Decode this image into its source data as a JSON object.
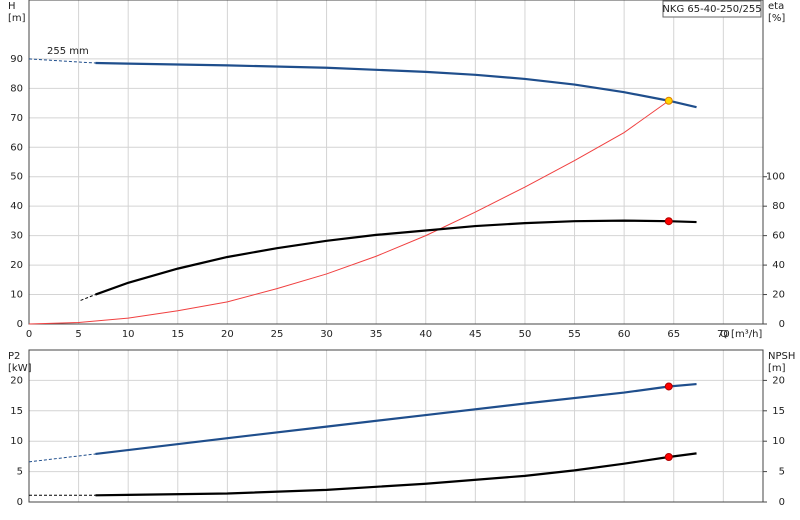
{
  "chart_data": [
    {
      "type": "line",
      "title": "NKG 65-40-250/255",
      "annotation": "255 mm",
      "ylabel": "H",
      "yunit": "[m]",
      "y2label": "eta",
      "y2unit": "[%]",
      "xlabel": "Q [m³/h]",
      "xlim": [
        0,
        74
      ],
      "xticks": [
        0,
        5,
        10,
        15,
        20,
        25,
        30,
        35,
        40,
        45,
        50,
        55,
        60,
        65,
        70
      ],
      "ylim": [
        0,
        110
      ],
      "yticks": [
        0,
        10,
        20,
        30,
        40,
        50,
        60,
        70,
        80,
        90
      ],
      "y2lim": [
        0,
        220
      ],
      "y2ticks": [
        0,
        20,
        40,
        60,
        80,
        100
      ],
      "grid": true,
      "show_xtick_labels": true,
      "series": [
        {
          "color": "#1f4e8c",
          "dash": true,
          "x": [
            0,
            6.7
          ],
          "values": [
            90,
            88.6
          ]
        },
        {
          "color": "#1f4e8c",
          "x": [
            6.7,
            10,
            20,
            30,
            40,
            45,
            50,
            55,
            60,
            64.5,
            67.3
          ],
          "values": [
            88.6,
            88.4,
            87.8,
            87,
            85.6,
            84.6,
            83.2,
            81.3,
            78.7,
            75.8,
            73.6
          ]
        },
        {
          "color": "#f04040",
          "thin": true,
          "x": [
            0,
            5,
            10,
            15,
            20,
            25,
            30,
            35,
            40,
            45,
            50,
            55,
            60,
            64.5
          ],
          "values": [
            0,
            0.5,
            2,
            4.5,
            7.5,
            12,
            17,
            23,
            30,
            38,
            46.5,
            55.5,
            65,
            75.8
          ]
        },
        {
          "color": "#000000",
          "dash": true,
          "axis": "y2",
          "x": [
            5.2,
            6.7
          ],
          "values": [
            16,
            20
          ]
        },
        {
          "color": "#000000",
          "axis": "y2",
          "x": [
            6.7,
            10,
            15,
            20,
            25,
            30,
            35,
            40,
            45,
            50,
            55,
            60,
            64.5,
            67.3
          ],
          "values": [
            20,
            28,
            37.6,
            45.5,
            51.5,
            56.5,
            60.5,
            63.5,
            66.5,
            68.5,
            69.8,
            70.2,
            69.8,
            69.2
          ]
        },
        {
          "color": "#ffd700",
          "marker": true,
          "x": [
            64.5
          ],
          "values": [
            75.8
          ]
        },
        {
          "color": "#ff0000",
          "marker": true,
          "axis": "y2",
          "x": [
            64.5
          ],
          "values": [
            69.8
          ]
        }
      ]
    },
    {
      "type": "line",
      "ylabel": "P2",
      "yunit": "[kW]",
      "y2label": "NPSH",
      "y2unit": "[m]",
      "xlim": [
        0,
        74
      ],
      "xticks": [
        0,
        5,
        10,
        15,
        20,
        25,
        30,
        35,
        40,
        45,
        50,
        55,
        60,
        65,
        70
      ],
      "ylim": [
        0,
        25
      ],
      "yticks": [
        0,
        5,
        10,
        15,
        20
      ],
      "y2lim": [
        0,
        25
      ],
      "y2ticks": [
        0,
        5,
        10,
        15,
        20
      ],
      "grid": true,
      "show_xtick_labels": false,
      "series": [
        {
          "color": "#1f4e8c",
          "dash": true,
          "x": [
            0,
            6.7
          ],
          "values": [
            6.6,
            7.9
          ]
        },
        {
          "color": "#1f4e8c",
          "x": [
            6.7,
            20,
            30,
            40,
            50,
            60,
            64.5,
            67.3
          ],
          "values": [
            7.9,
            10.5,
            12.4,
            14.3,
            16.2,
            18,
            19,
            19.4
          ]
        },
        {
          "color": "#000000",
          "dash": true,
          "axis": "y2",
          "x": [
            0,
            6.7
          ],
          "values": [
            1.1,
            1.1
          ]
        },
        {
          "color": "#000000",
          "axis": "y2",
          "x": [
            6.7,
            20,
            30,
            40,
            50,
            55,
            60,
            64.5,
            67.3
          ],
          "values": [
            1.1,
            1.4,
            2.0,
            3.0,
            4.3,
            5.2,
            6.3,
            7.4,
            8.0
          ]
        },
        {
          "color": "#ff0000",
          "marker": true,
          "x": [
            64.5
          ],
          "values": [
            19
          ]
        },
        {
          "color": "#ff0000",
          "marker": true,
          "axis": "y2",
          "x": [
            64.5
          ],
          "values": [
            7.4
          ]
        }
      ]
    }
  ]
}
